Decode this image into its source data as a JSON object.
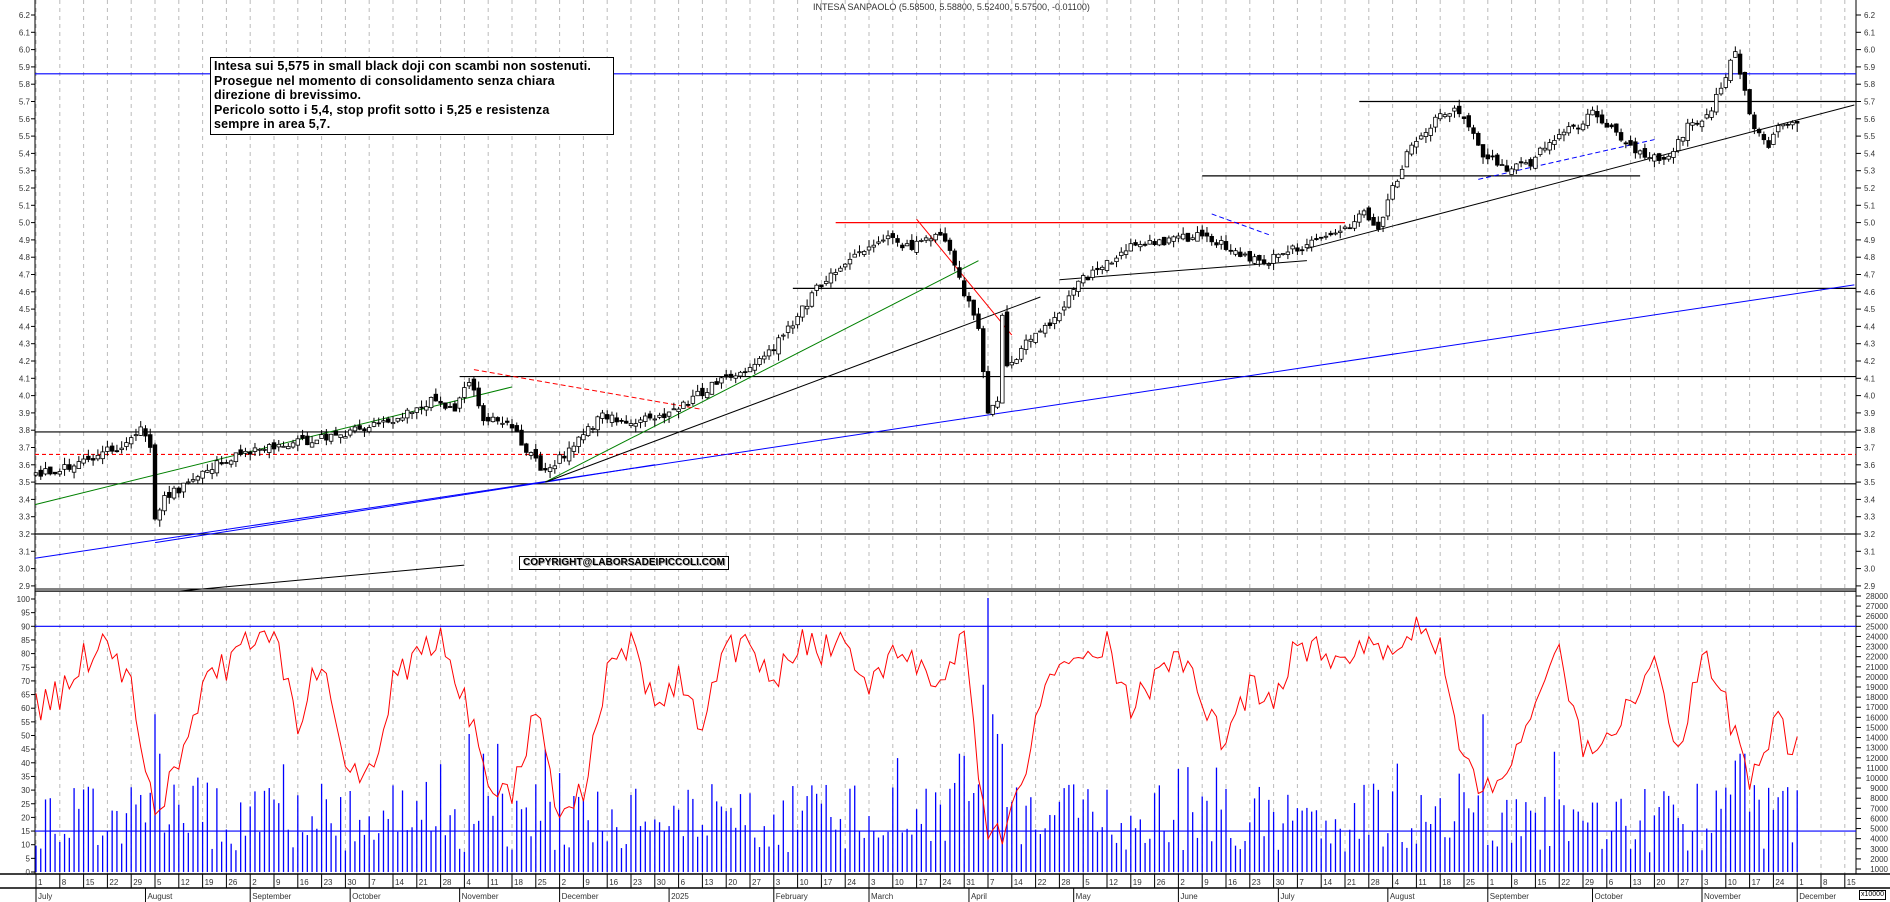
{
  "header": {
    "title": "INTESA SANPAOLO (5.58500, 5.58800, 5.52400, 5.57500, -0.01100)"
  },
  "annotation": {
    "lines": [
      "Intesa sui 5,575 in small black doji con scambi non sostenuti.",
      "Prosegue nel momento di consolidamento senza chiara",
      "direzione di brevissimo.",
      "Pericolo sotto i 5,4, stop profit sotto i 5,25  e resistenza",
      "sempre in area 5,7."
    ]
  },
  "copyright": "COPYRIGHT@LABORSADEIPICCOLI.COM",
  "volume_unit": "x10000",
  "colors": {
    "candle_up": "#ffffff",
    "candle_down": "#000000",
    "oscillator": "#ff0000",
    "volume": "#0000ff",
    "grid": "#bbbbbb"
  },
  "chart_data": {
    "type": "candlestick",
    "symbol": "INTESA SANPAOLO",
    "last_candle": {
      "date": "2025-12-01",
      "open": 5.585,
      "high": 5.588,
      "low": 5.524,
      "close": 5.575,
      "change": -0.011
    },
    "price_axis": {
      "range": [
        2.9,
        6.2
      ],
      "ticks": [
        2.9,
        3.0,
        3.1,
        3.2,
        3.3,
        3.4,
        3.5,
        3.6,
        3.7,
        3.8,
        3.9,
        4.0,
        4.1,
        4.2,
        4.3,
        4.4,
        4.5,
        4.6,
        4.7,
        4.8,
        4.9,
        5.0,
        5.1,
        5.2,
        5.3,
        5.4,
        5.5,
        5.6,
        5.7,
        5.8,
        5.9,
        6.0,
        6.1,
        6.2
      ]
    },
    "close_path": [
      [
        "2024-07-01",
        3.55
      ],
      [
        "2024-07-12",
        3.6
      ],
      [
        "2024-07-19",
        3.68
      ],
      [
        "2024-07-26",
        3.72
      ],
      [
        "2024-07-31",
        3.8
      ],
      [
        "2024-08-02",
        3.7
      ],
      [
        "2024-08-05",
        3.3
      ],
      [
        "2024-08-07",
        3.42
      ],
      [
        "2024-08-15",
        3.5
      ],
      [
        "2024-08-23",
        3.62
      ],
      [
        "2024-08-30",
        3.68
      ],
      [
        "2024-09-13",
        3.72
      ],
      [
        "2024-09-27",
        3.78
      ],
      [
        "2024-10-11",
        3.85
      ],
      [
        "2024-10-25",
        3.98
      ],
      [
        "2024-10-31",
        3.92
      ],
      [
        "2024-11-05",
        4.1
      ],
      [
        "2024-11-08",
        3.88
      ],
      [
        "2024-11-15",
        3.85
      ],
      [
        "2024-11-22",
        3.65
      ],
      [
        "2024-11-27",
        3.55
      ],
      [
        "2024-12-06",
        3.75
      ],
      [
        "2024-12-13",
        3.88
      ],
      [
        "2024-12-20",
        3.85
      ],
      [
        "2024-12-31",
        3.88
      ],
      [
        "2025-01-10",
        4.0
      ],
      [
        "2025-01-17",
        4.1
      ],
      [
        "2025-01-24",
        4.15
      ],
      [
        "2025-01-31",
        4.25
      ],
      [
        "2025-02-07",
        4.42
      ],
      [
        "2025-02-14",
        4.62
      ],
      [
        "2025-02-21",
        4.75
      ],
      [
        "2025-02-28",
        4.85
      ],
      [
        "2025-03-07",
        4.9
      ],
      [
        "2025-03-14",
        4.85
      ],
      [
        "2025-03-21",
        4.95
      ],
      [
        "2025-03-26",
        4.85
      ],
      [
        "2025-03-28",
        4.7
      ],
      [
        "2025-03-31",
        4.6
      ],
      [
        "2025-04-03",
        4.4
      ],
      [
        "2025-04-04",
        4.13
      ],
      [
        "2025-04-07",
        3.9
      ],
      [
        "2025-04-09",
        3.95
      ],
      [
        "2025-04-10",
        4.45
      ],
      [
        "2025-04-11",
        4.15
      ],
      [
        "2025-04-17",
        4.3
      ],
      [
        "2025-04-25",
        4.45
      ],
      [
        "2025-05-02",
        4.65
      ],
      [
        "2025-05-09",
        4.75
      ],
      [
        "2025-05-16",
        4.85
      ],
      [
        "2025-05-23",
        4.88
      ],
      [
        "2025-05-30",
        4.9
      ],
      [
        "2025-06-06",
        4.92
      ],
      [
        "2025-06-13",
        4.88
      ],
      [
        "2025-06-20",
        4.8
      ],
      [
        "2025-06-27",
        4.78
      ],
      [
        "2025-07-04",
        4.85
      ],
      [
        "2025-07-11",
        4.88
      ],
      [
        "2025-07-18",
        4.95
      ],
      [
        "2025-07-25",
        5.05
      ],
      [
        "2025-07-30",
        4.98
      ],
      [
        "2025-08-04",
        5.2
      ],
      [
        "2025-08-08",
        5.45
      ],
      [
        "2025-08-15",
        5.6
      ],
      [
        "2025-08-22",
        5.65
      ],
      [
        "2025-08-29",
        5.4
      ],
      [
        "2025-09-05",
        5.3
      ],
      [
        "2025-09-12",
        5.35
      ],
      [
        "2025-09-19",
        5.5
      ],
      [
        "2025-09-26",
        5.55
      ],
      [
        "2025-10-01",
        5.65
      ],
      [
        "2025-10-08",
        5.5
      ],
      [
        "2025-10-15",
        5.4
      ],
      [
        "2025-10-22",
        5.35
      ],
      [
        "2025-10-29",
        5.55
      ],
      [
        "2025-11-05",
        5.65
      ],
      [
        "2025-11-10",
        5.85
      ],
      [
        "2025-11-12",
        5.98
      ],
      [
        "2025-11-14",
        5.75
      ],
      [
        "2025-11-18",
        5.55
      ],
      [
        "2025-11-21",
        5.45
      ],
      [
        "2025-11-25",
        5.55
      ],
      [
        "2025-12-01",
        5.575
      ]
    ],
    "horizontal_levels": [
      {
        "price": 5.86,
        "color": "#0000ff",
        "from": null,
        "to": null
      },
      {
        "price": 5.7,
        "color": "#000000",
        "from": "2025-07-24",
        "to": null
      },
      {
        "price": 5.27,
        "color": "#000000",
        "from": "2025-06-09",
        "to": "2025-10-15"
      },
      {
        "price": 5.0,
        "color": "#ff0000",
        "from": "2025-02-20",
        "to": "2025-07-21"
      },
      {
        "price": 4.62,
        "color": "#000000",
        "from": "2025-02-07",
        "to": null
      },
      {
        "price": 4.11,
        "color": "#000000",
        "from": "2024-11-01",
        "to": null
      },
      {
        "price": 3.79,
        "color": "#000000",
        "from": null,
        "to": null
      },
      {
        "price": 3.66,
        "color": "#ff0000",
        "dashed": true,
        "from": null,
        "to": null
      },
      {
        "price": 3.49,
        "color": "#000000",
        "from": null,
        "to": null
      },
      {
        "price": 3.2,
        "color": "#000000",
        "from": null,
        "to": null
      },
      {
        "price": 2.87,
        "color": "#000000",
        "from": null,
        "to": null
      }
    ],
    "trend_lines": [
      {
        "color": "#0000ff",
        "from": [
          "2024-06-28",
          3.06
        ],
        "to": [
          "2025-12-17",
          4.64
        ]
      },
      {
        "color": "#0000ff",
        "from": [
          "2024-08-05",
          3.15
        ],
        "to": [
          "2024-11-27",
          3.5
        ]
      },
      {
        "color": "#0000ff",
        "from": [
          "2024-11-27",
          3.5
        ],
        "to": [
          "2024-12-30",
          3.6
        ]
      },
      {
        "color": "#008000",
        "from": [
          "2024-06-28",
          3.37
        ],
        "to": [
          "2024-11-18",
          4.05
        ]
      },
      {
        "color": "#008000",
        "from": [
          "2024-11-27",
          3.5
        ],
        "to": [
          "2025-04-03",
          4.78
        ]
      },
      {
        "color": "#000000",
        "from": [
          "2024-11-27",
          3.5
        ],
        "to": [
          "2025-04-22",
          4.57
        ]
      },
      {
        "color": "#ff0000",
        "dashed": true,
        "from": [
          "2024-11-06",
          4.15
        ],
        "to": [
          "2025-01-13",
          3.92
        ]
      },
      {
        "color": "#ff0000",
        "from": [
          "2025-03-17",
          5.02
        ],
        "to": [
          "2025-04-14",
          4.35
        ]
      },
      {
        "color": "#000000",
        "from": [
          "2025-04-28",
          4.67
        ],
        "to": [
          "2025-07-09",
          4.78
        ]
      },
      {
        "color": "#0000ff",
        "dashed": true,
        "from": [
          "2025-06-11",
          5.05
        ],
        "to": [
          "2025-06-27",
          4.93
        ]
      },
      {
        "color": "#000000",
        "from": [
          "2025-07-09",
          4.85
        ],
        "to": [
          "2025-12-17",
          5.68
        ]
      },
      {
        "color": "#0000ff",
        "dashed": true,
        "from": [
          "2025-08-28",
          5.25
        ],
        "to": [
          "2025-10-20",
          5.48
        ]
      },
      {
        "color": "#000000",
        "from": [
          "2024-08-12",
          2.87
        ],
        "to": [
          "2024-11-04",
          3.02
        ]
      }
    ],
    "oscillator": {
      "axis": {
        "range": [
          0,
          100
        ],
        "ticks": [
          0,
          5,
          10,
          15,
          20,
          25,
          30,
          35,
          40,
          45,
          50,
          55,
          60,
          65,
          70,
          75,
          80,
          85,
          90,
          95,
          100
        ]
      },
      "levels": [
        90,
        15
      ],
      "weekly_values_from": "2024-07-01",
      "weekly_values": [
        60,
        65,
        78,
        82,
        70,
        20,
        40,
        70,
        75,
        85,
        88,
        55,
        80,
        35,
        35,
        70,
        80,
        84,
        65,
        35,
        30,
        60,
        15,
        30,
        75,
        85,
        60,
        70,
        55,
        80,
        85,
        70,
        85,
        80,
        88,
        65,
        80,
        75,
        70,
        85,
        8,
        20,
        55,
        75,
        80,
        85,
        60,
        70,
        80,
        65,
        45,
        70,
        60,
        85,
        80,
        75,
        88,
        80,
        90,
        85,
        40,
        30,
        40,
        65,
        80,
        45,
        50,
        60,
        80,
        40,
        80,
        60,
        30,
        55,
        45
      ]
    },
    "volume": {
      "axis": {
        "range": [
          0,
          28000
        ],
        "ticks": [
          1000,
          2000,
          3000,
          4000,
          5000,
          6000,
          7000,
          8000,
          9000,
          10000,
          11000,
          12000,
          13000,
          14000,
          15000,
          16000,
          17000,
          18000,
          19000,
          20000,
          21000,
          22000,
          23000,
          24000,
          25000,
          26000,
          27000,
          28000
        ]
      },
      "typical_range": [
        2000,
        9000
      ],
      "spikes": [
        [
          "2024-08-05",
          16000
        ],
        [
          "2024-08-06",
          12000
        ],
        [
          "2024-11-05",
          14000
        ],
        [
          "2024-11-08",
          12000
        ],
        [
          "2024-11-13",
          13000
        ],
        [
          "2025-03-28",
          12000
        ],
        [
          "2025-04-04",
          19000
        ],
        [
          "2025-04-07",
          28000
        ],
        [
          "2025-04-08",
          16000
        ],
        [
          "2025-04-09",
          14000
        ],
        [
          "2025-04-10",
          13000
        ],
        [
          "2025-08-29",
          16000
        ],
        [
          "2025-11-13",
          12000
        ],
        [
          "2025-11-14",
          12000
        ]
      ]
    },
    "date_axis": {
      "weeks": [
        "1",
        "8",
        "15",
        "22",
        "29",
        "5",
        "12",
        "19",
        "26",
        "2",
        "9",
        "16",
        "23",
        "30",
        "7",
        "14",
        "21",
        "28",
        "4",
        "11",
        "18",
        "25",
        "2",
        "9",
        "16",
        "23",
        "30",
        "6",
        "13",
        "20",
        "27",
        "3",
        "10",
        "17",
        "24",
        "3",
        "10",
        "17",
        "24",
        "31",
        "7",
        "14",
        "22",
        "28",
        "5",
        "12",
        "19",
        "26",
        "2",
        "9",
        "16",
        "23",
        "30",
        "7",
        "14",
        "21",
        "28",
        "4",
        "11",
        "18",
        "25",
        "1",
        "8",
        "15",
        "22",
        "29",
        "6",
        "13",
        "20",
        "27",
        "3",
        "10",
        "17",
        "24",
        "1",
        "8",
        "15"
      ],
      "months": [
        {
          "label": "July",
          "start": "2024-07-01"
        },
        {
          "label": "August",
          "start": "2024-08-01"
        },
        {
          "label": "September",
          "start": "2024-09-02"
        },
        {
          "label": "October",
          "start": "2024-10-01"
        },
        {
          "label": "November",
          "start": "2024-11-01"
        },
        {
          "label": "December",
          "start": "2024-12-02"
        },
        {
          "label": "2025",
          "start": "2025-01-02"
        },
        {
          "label": "February",
          "start": "2025-02-03"
        },
        {
          "label": "March",
          "start": "2025-03-03"
        },
        {
          "label": "April",
          "start": "2025-04-01"
        },
        {
          "label": "May",
          "start": "2025-05-01"
        },
        {
          "label": "June",
          "start": "2025-06-02"
        },
        {
          "label": "July",
          "start": "2025-07-01"
        },
        {
          "label": "August",
          "start": "2025-08-01"
        },
        {
          "label": "September",
          "start": "2025-09-01"
        },
        {
          "label": "October",
          "start": "2025-10-01"
        },
        {
          "label": "November",
          "start": "2025-11-03"
        },
        {
          "label": "December",
          "start": "2025-12-01"
        }
      ]
    }
  }
}
